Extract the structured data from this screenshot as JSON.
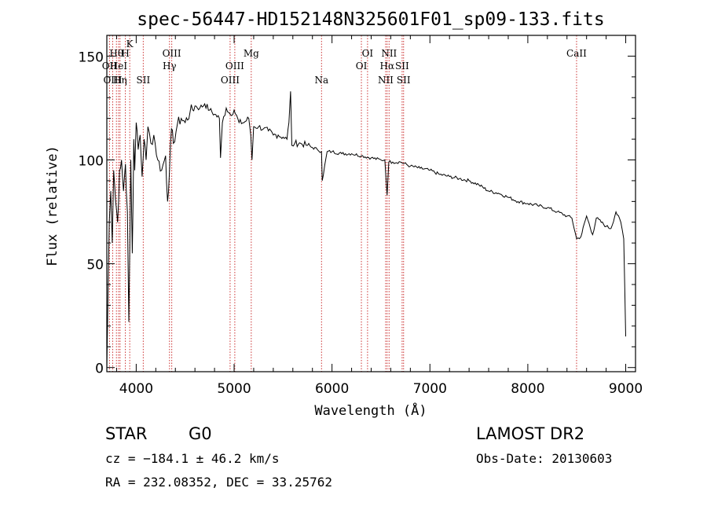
{
  "chart_data": {
    "type": "line",
    "title": "spec-56447-HD152148N325601F01_sp09-133.fits",
    "xlabel": "Wavelength (Å)",
    "ylabel": "Flux (relative)",
    "xlim": [
      3700,
      9100
    ],
    "ylim": [
      -2,
      160
    ],
    "x_ticks": [
      4000,
      5000,
      6000,
      7000,
      8000,
      9000
    ],
    "y_ticks": [
      0,
      50,
      100,
      150
    ],
    "grid": false,
    "series": [
      {
        "x": [
          3700,
          3712,
          3725,
          3740,
          3755,
          3770,
          3790,
          3810,
          3830,
          3850,
          3870,
          3890,
          3910,
          3925,
          3935,
          3945,
          3960,
          3968,
          3975,
          3985,
          4000,
          4020,
          4040,
          4060,
          4080,
          4101,
          4120,
          4150,
          4180,
          4220,
          4260,
          4300,
          4320,
          4340,
          4360,
          4380,
          4420,
          4460,
          4500,
          4550,
          4600,
          4650,
          4700,
          4750,
          4800,
          4850,
          4861,
          4880,
          4920,
          4960,
          5000,
          5050,
          5100,
          5150,
          5170,
          5183,
          5200,
          5250,
          5300,
          5350,
          5400,
          5450,
          5500,
          5540,
          5560,
          5577,
          5590,
          5620,
          5680,
          5750,
          5800,
          5850,
          5893,
          5900,
          5950,
          6000,
          6100,
          6200,
          6300,
          6400,
          6500,
          6540,
          6563,
          6580,
          6620,
          6700,
          6800,
          6900,
          7000,
          7100,
          7200,
          7300,
          7400,
          7500,
          7600,
          7700,
          7800,
          7900,
          8000,
          8100,
          8200,
          8300,
          8400,
          8450,
          8498,
          8542,
          8600,
          8662,
          8700,
          8800,
          8850,
          8900,
          8950,
          8980,
          9000
        ],
        "y": [
          0,
          35,
          70,
          85,
          60,
          95,
          80,
          70,
          95,
          100,
          85,
          98,
          75,
          22,
          60,
          100,
          55,
          80,
          110,
          95,
          118,
          105,
          112,
          92,
          110,
          100,
          116,
          108,
          112,
          100,
          95,
          102,
          80,
          95,
          115,
          108,
          117,
          120,
          118,
          123,
          126,
          125,
          127,
          124,
          122,
          120,
          101,
          118,
          125,
          122,
          124,
          118,
          118,
          120,
          112,
          100,
          116,
          116,
          115,
          114,
          112,
          112,
          111,
          110,
          118,
          133,
          107,
          108,
          108,
          107,
          106,
          105,
          104,
          90,
          104,
          104,
          103,
          103,
          102,
          101,
          100,
          100,
          83,
          99,
          99,
          99,
          97,
          96,
          95,
          93,
          92,
          91,
          90,
          88,
          85,
          84,
          82,
          80,
          79,
          78,
          77,
          75,
          73,
          72,
          62,
          63,
          73,
          64,
          72,
          68,
          67,
          75,
          70,
          62,
          15
        ]
      }
    ],
    "spectral_lines": [
      {
        "label": "Hθ",
        "wavelength": 3798,
        "row": 1
      },
      {
        "label": "OII",
        "wavelength": 3727,
        "row": 2
      },
      {
        "label": "HeI",
        "wavelength": 3820,
        "row": 2
      },
      {
        "label": "OIII",
        "wavelength": 3760,
        "row": 3
      },
      {
        "label": "Hη",
        "wavelength": 3835,
        "row": 3
      },
      {
        "label": "H",
        "wavelength": 3889,
        "row": 1
      },
      {
        "label": "K",
        "wavelength": 3934,
        "row": 0
      },
      {
        "label": "SII",
        "wavelength": 4072,
        "row": 3
      },
      {
        "label": "OIII",
        "wavelength": 4363,
        "row": 1
      },
      {
        "label": "Hγ",
        "wavelength": 4340,
        "row": 2
      },
      {
        "label": "OIII",
        "wavelength": 5007,
        "row": 2
      },
      {
        "label": "OIII",
        "wavelength": 4959,
        "row": 3
      },
      {
        "label": "Mg",
        "wavelength": 5175,
        "row": 1
      },
      {
        "label": "Na",
        "wavelength": 5893,
        "row": 3
      },
      {
        "label": "OI",
        "wavelength": 6363,
        "row": 1
      },
      {
        "label": "OI",
        "wavelength": 6300,
        "row": 2
      },
      {
        "label": "NII",
        "wavelength": 6583,
        "row": 1
      },
      {
        "label": "Hα",
        "wavelength": 6563,
        "row": 2
      },
      {
        "label": "SII",
        "wavelength": 6716,
        "row": 2
      },
      {
        "label": "NII",
        "wavelength": 6548,
        "row": 3
      },
      {
        "label": "SII",
        "wavelength": 6731,
        "row": 3
      },
      {
        "label": "CaII",
        "wavelength": 8498,
        "row": 1
      }
    ]
  },
  "info": {
    "object_class": "STAR",
    "subclass": "G0",
    "survey": "LAMOST DR2",
    "redshift": "cz = −184.1 ± 46.2 km/s",
    "obs_date": "Obs-Date: 20130603",
    "coords": "RA = 232.08352, DEC =  33.25762"
  },
  "colors": {
    "line_markers": "#cc3333",
    "spectrum": "#000000"
  }
}
